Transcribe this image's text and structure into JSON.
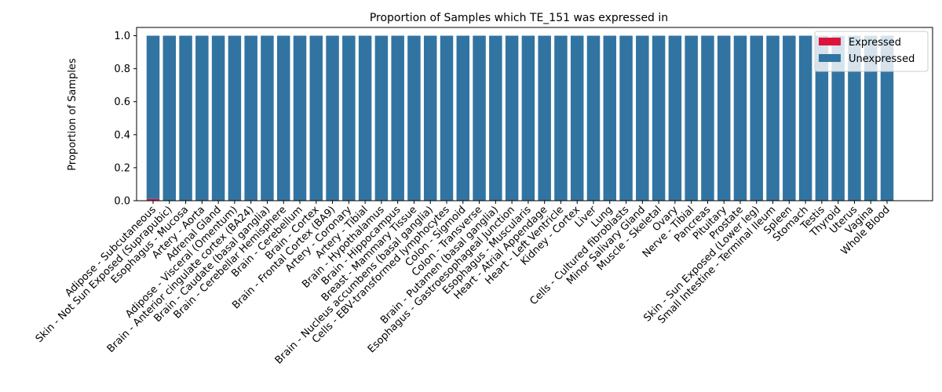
{
  "chart_data": {
    "type": "bar",
    "title": "Proportion of Samples which TE_151 was expressed in",
    "xlabel": "",
    "ylabel": "Proportion of Samples",
    "ylim": [
      0,
      1.05
    ],
    "yticks": [
      "0.0",
      "0.2",
      "0.4",
      "0.6",
      "0.8",
      "1.0"
    ],
    "stacked": true,
    "legend_position": "top-right",
    "categories": [
      "Adipose - Subcutaneous",
      "Skin - Not Sun Exposed (Suprapubic)",
      "Esophagus - Mucosa",
      "Artery - Aorta",
      "Adrenal Gland",
      "Adipose - Visceral (Omentum)",
      "Brain - Anterior cingulate cortex (BA24)",
      "Brain - Caudate (basal ganglia)",
      "Brain - Cerebellar Hemisphere",
      "Brain - Cerebellum",
      "Brain - Cortex",
      "Brain - Frontal Cortex (BA9)",
      "Artery - Coronary",
      "Artery - Tibial",
      "Brain - Hypothalamus",
      "Brain - Hippocampus",
      "Breast - Mammary Tissue",
      "Brain - Nucleus accumbens (basal ganglia)",
      "Cells - EBV-transformed lymphocytes",
      "Colon - Sigmoid",
      "Colon - Transverse",
      "Brain - Putamen (basal ganglia)",
      "Esophagus - Gastroesophageal Junction",
      "Esophagus - Muscularis",
      "Heart - Atrial Appendage",
      "Heart - Left Ventricle",
      "Kidney - Cortex",
      "Liver",
      "Lung",
      "Cells - Cultured fibroblasts",
      "Minor Salivary Gland",
      "Muscle - Skeletal",
      "Ovary",
      "Nerve - Tibial",
      "Pancreas",
      "Pituitary",
      "Prostate",
      "Skin - Sun Exposed (Lower leg)",
      "Small Intestine - Terminal Ileum",
      "Spleen",
      "Stomach",
      "Testis",
      "Thyroid",
      "Uterus",
      "Vagina",
      "Whole Blood"
    ],
    "series": [
      {
        "name": "Expressed",
        "color": "#dc143c",
        "values": [
          0.01,
          0,
          0,
          0,
          0,
          0,
          0,
          0,
          0,
          0,
          0,
          0,
          0,
          0,
          0,
          0,
          0,
          0,
          0,
          0,
          0,
          0,
          0,
          0,
          0,
          0,
          0,
          0,
          0,
          0,
          0,
          0,
          0,
          0,
          0,
          0,
          0,
          0,
          0,
          0,
          0,
          0,
          0,
          0,
          0,
          0
        ]
      },
      {
        "name": "Unexpressed",
        "color": "#3274a1",
        "values": [
          0.99,
          1,
          1,
          1,
          1,
          1,
          1,
          1,
          1,
          1,
          1,
          1,
          1,
          1,
          1,
          1,
          1,
          1,
          1,
          1,
          1,
          1,
          1,
          1,
          1,
          1,
          1,
          1,
          1,
          1,
          1,
          1,
          1,
          1,
          1,
          1,
          1,
          1,
          1,
          1,
          1,
          1,
          1,
          1,
          1,
          1
        ]
      }
    ]
  }
}
